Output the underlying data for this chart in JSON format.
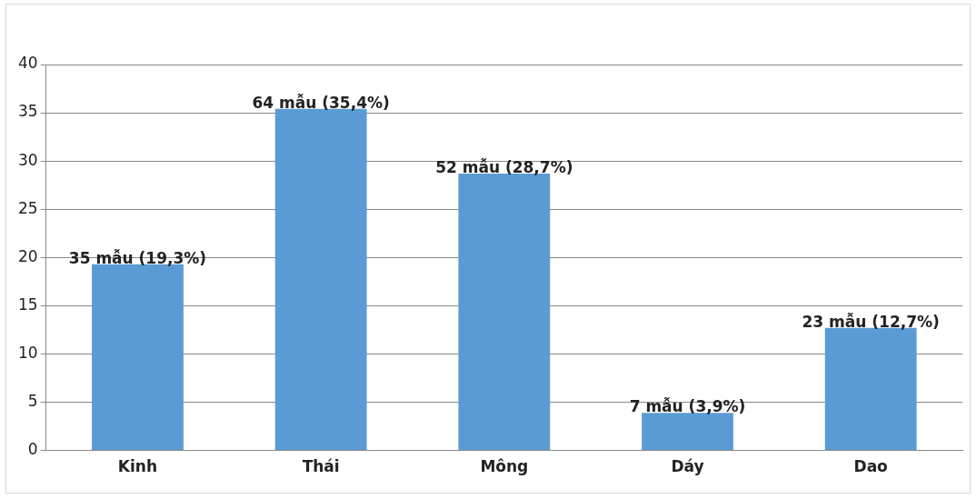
{
  "chart_data": {
    "type": "bar",
    "categories": [
      "Kinh",
      "Thái",
      "Mông",
      "Dáy",
      "Dao"
    ],
    "values": [
      19.3,
      35.4,
      28.7,
      3.9,
      12.7
    ],
    "value_labels": [
      "35 mẫu (19,3%)",
      "64 mẫu (35,4%)",
      "52 mẫu (28,7%)",
      "7 mẫu (3,9%)",
      "23 mẫu (12,7%)"
    ],
    "color": "#5b9bd5",
    "ylim": [
      0,
      40
    ],
    "yticks": [
      0,
      5,
      10,
      15,
      20,
      25,
      30,
      35,
      40
    ],
    "grid": "y",
    "legend": false
  }
}
